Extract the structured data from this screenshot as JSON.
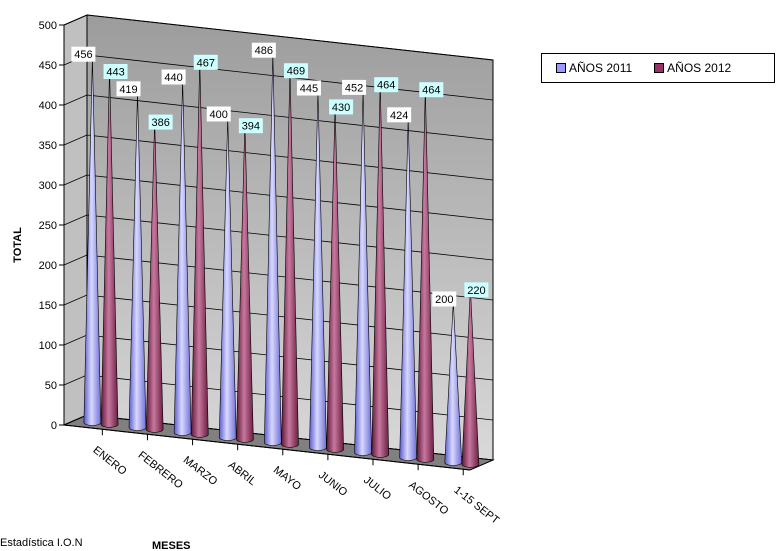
{
  "chart_data": {
    "type": "bar",
    "style": "3d-cone",
    "categories": [
      "ENERO",
      "FEBRERO",
      "MARZO",
      "ABRIL",
      "MAYO",
      "JUNIO",
      "JULIO",
      "AGOSTO",
      "1-15 SEPT"
    ],
    "series": [
      {
        "name": "AÑOS 2011",
        "color": "#9999ff",
        "values": [
          456,
          419,
          440,
          400,
          486,
          445,
          452,
          424,
          200
        ]
      },
      {
        "name": "AÑOS 2012",
        "color": "#993366",
        "values": [
          443,
          386,
          467,
          394,
          469,
          430,
          464,
          464,
          220
        ]
      }
    ],
    "ylabel": "TOTAL",
    "xlabel": "MESES",
    "ylim": [
      0,
      500
    ],
    "yticks": [
      0,
      50,
      100,
      150,
      200,
      250,
      300,
      350,
      400,
      450,
      500
    ],
    "grid": true,
    "legend_position": "top-right"
  },
  "legend": [
    {
      "label": "AÑOS 2011",
      "color": "#9999ff"
    },
    {
      "label": "AÑOS 2012",
      "color": "#993366"
    }
  ],
  "source": "Estadística I.O.N"
}
